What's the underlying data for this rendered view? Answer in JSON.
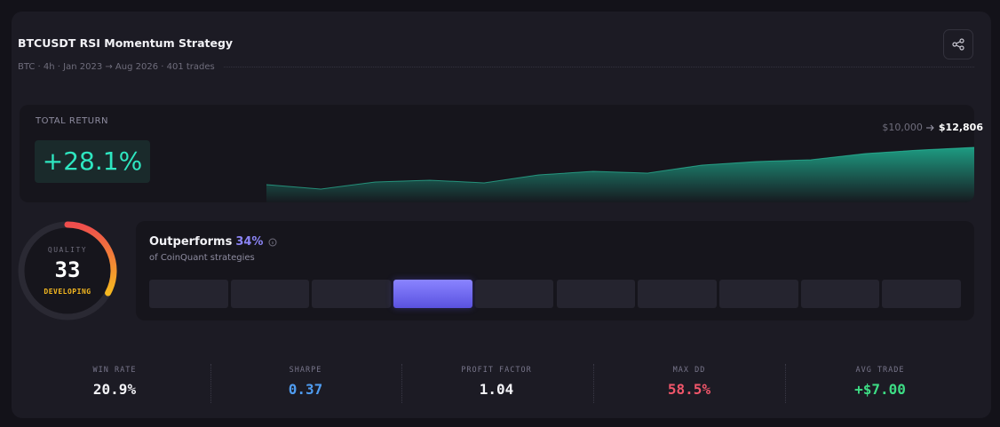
{
  "header": {
    "title": "BTCUSDT RSI Momentum Strategy",
    "subtitle": "BTC · 4h · Jan 2023 → Aug 2026 · 401 trades"
  },
  "total_return": {
    "label": "TOTAL RETURN",
    "value": "+28.1%",
    "start": "$10,000",
    "end": "$12,806",
    "equity_curve": [
      10000,
      9666,
      10200,
      10334,
      10134,
      10735,
      11002,
      10868,
      11470,
      11737,
      11871,
      12339,
      12606,
      12806
    ]
  },
  "quality": {
    "label": "QUALITY",
    "score": 33,
    "status": "DEVELOPING"
  },
  "percentile": {
    "label": "Outperforms",
    "percent": 34,
    "percent_label": "34%",
    "caption": "of CoinQuant strategies"
  },
  "metrics": [
    {
      "label": "WIN RATE",
      "value": "20.9%"
    },
    {
      "label": "SHARPE",
      "value": "0.37"
    },
    {
      "label": "PROFIT FACTOR",
      "value": "1.04"
    },
    {
      "label": "MAX DD",
      "value": "58.5%"
    },
    {
      "label": "AVG TRADE",
      "value": "+$7.00"
    }
  ]
}
